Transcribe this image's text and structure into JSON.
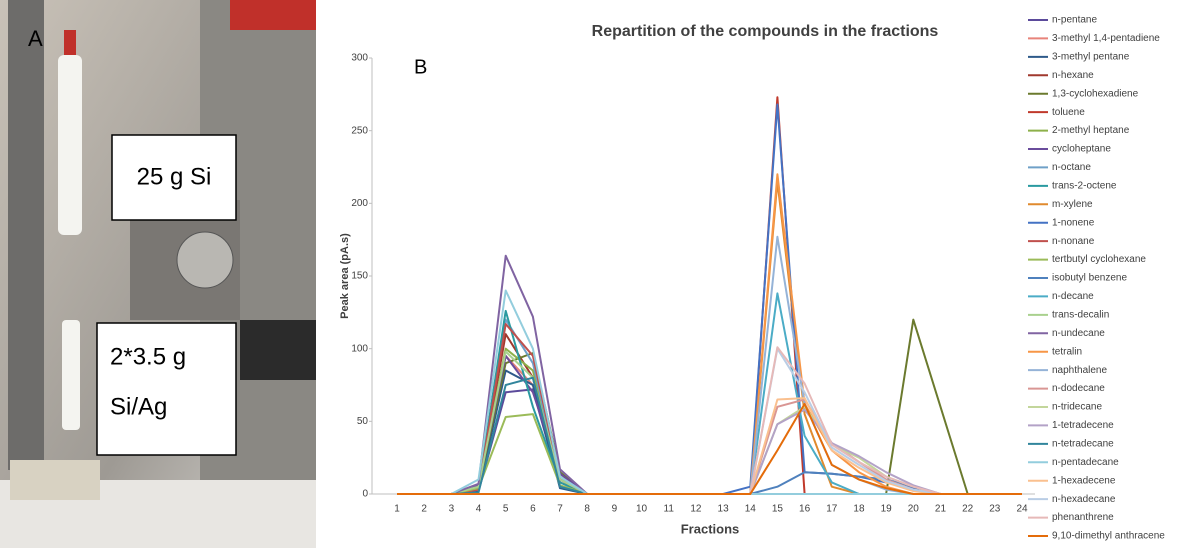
{
  "photo": {
    "panel": "A",
    "box1": "25 g Si",
    "box2": [
      "2*3.5 g",
      "Si/Ag"
    ]
  },
  "chart_data": {
    "type": "line",
    "title": "Repartition of the compounds in the fractions",
    "annotation": "B",
    "x_label": "Fractions",
    "y_label": "Peak area (pA.s)",
    "categories": [
      "1",
      "2",
      "3",
      "4",
      "5",
      "6",
      "7",
      "8",
      "9",
      "10",
      "11",
      "12",
      "13",
      "14",
      "15",
      "16",
      "17",
      "18",
      "19",
      "20",
      "21",
      "22",
      "23",
      "24"
    ],
    "ylim": [
      0,
      300
    ],
    "yticks": [
      0,
      50,
      100,
      150,
      200,
      250,
      300
    ],
    "grid": false,
    "legend": "right",
    "series": [
      {
        "name": "n-pentane",
        "color": "#5b4a9b",
        "values": [
          0,
          0,
          0,
          2,
          70,
          72,
          5,
          0,
          0,
          0,
          0,
          0,
          0,
          0,
          0,
          0,
          0,
          0,
          0,
          0,
          0,
          0,
          0,
          0
        ]
      },
      {
        "name": "3-methyl 1,4-pentadiene",
        "color": "#e8837a",
        "values": [
          0,
          0,
          0,
          3,
          95,
          75,
          8,
          0,
          0,
          0,
          0,
          0,
          0,
          0,
          0,
          0,
          0,
          0,
          0,
          0,
          0,
          0,
          0,
          0
        ]
      },
      {
        "name": "3-methyl pentane",
        "color": "#2e5a8a",
        "values": [
          0,
          0,
          0,
          2,
          85,
          75,
          4,
          0,
          0,
          0,
          0,
          0,
          0,
          0,
          0,
          0,
          0,
          0,
          0,
          0,
          0,
          0,
          0,
          0
        ]
      },
      {
        "name": "n-hexane",
        "color": "#a0392e",
        "values": [
          0,
          0,
          0,
          4,
          110,
          80,
          10,
          0,
          0,
          0,
          0,
          0,
          0,
          0,
          0,
          0,
          0,
          0,
          0,
          0,
          0,
          0,
          0,
          0
        ]
      },
      {
        "name": "1,3-cyclohexadiene",
        "color": "#6b7a2e",
        "values": [
          0,
          0,
          0,
          5,
          90,
          97,
          15,
          0,
          0,
          0,
          0,
          0,
          0,
          0,
          0,
          0,
          0,
          0,
          0,
          120,
          60,
          0,
          0,
          0
        ]
      },
      {
        "name": "toluene",
        "color": "#c0392b",
        "values": [
          0,
          0,
          0,
          0,
          0,
          0,
          0,
          0,
          0,
          0,
          0,
          0,
          0,
          0,
          273,
          0,
          0,
          0,
          0,
          0,
          0,
          0,
          0,
          0
        ]
      },
      {
        "name": "2-methyl heptane",
        "color": "#8db04a",
        "values": [
          0,
          0,
          0,
          5,
          100,
          85,
          12,
          0,
          0,
          0,
          0,
          0,
          0,
          0,
          0,
          0,
          0,
          0,
          0,
          0,
          0,
          0,
          0,
          0
        ]
      },
      {
        "name": "cycloheptane",
        "color": "#6a4c9c",
        "values": [
          0,
          0,
          0,
          6,
          95,
          70,
          14,
          0,
          0,
          0,
          0,
          0,
          0,
          0,
          0,
          0,
          0,
          0,
          0,
          0,
          0,
          0,
          0,
          0
        ]
      },
      {
        "name": "n-octane",
        "color": "#6fa0c8",
        "values": [
          0,
          0,
          0,
          3,
          120,
          90,
          10,
          0,
          0,
          0,
          0,
          0,
          0,
          0,
          0,
          0,
          0,
          0,
          0,
          0,
          0,
          0,
          0,
          0
        ]
      },
      {
        "name": "trans-2-octene",
        "color": "#2a9aa0",
        "values": [
          0,
          0,
          0,
          4,
          126,
          60,
          8,
          0,
          0,
          0,
          0,
          0,
          0,
          0,
          0,
          0,
          0,
          0,
          0,
          0,
          0,
          0,
          0,
          0
        ]
      },
      {
        "name": "m-xylene",
        "color": "#e08a2e",
        "values": [
          0,
          0,
          0,
          0,
          0,
          0,
          0,
          0,
          0,
          0,
          0,
          0,
          0,
          0,
          215,
          55,
          5,
          0,
          0,
          0,
          0,
          0,
          0,
          0
        ]
      },
      {
        "name": "1-nonene",
        "color": "#4472c4",
        "values": [
          0,
          0,
          0,
          0,
          0,
          0,
          0,
          0,
          0,
          0,
          0,
          0,
          0,
          5,
          268,
          15,
          14,
          12,
          8,
          4,
          0,
          0,
          0,
          0
        ]
      },
      {
        "name": "n-nonane",
        "color": "#c0504d",
        "values": [
          0,
          0,
          0,
          3,
          117,
          95,
          10,
          0,
          0,
          0,
          0,
          0,
          0,
          0,
          0,
          0,
          0,
          0,
          0,
          0,
          0,
          0,
          0,
          0
        ]
      },
      {
        "name": "tertbutyl cyclohexane",
        "color": "#9bbb59",
        "values": [
          0,
          0,
          0,
          4,
          53,
          55,
          6,
          0,
          0,
          0,
          0,
          0,
          0,
          0,
          0,
          0,
          0,
          0,
          0,
          0,
          0,
          0,
          0,
          0
        ]
      },
      {
        "name": "isobutyl benzene",
        "color": "#4f81bd",
        "values": [
          0,
          0,
          0,
          0,
          0,
          0,
          0,
          0,
          0,
          0,
          0,
          0,
          0,
          0,
          5,
          15,
          14,
          12,
          10,
          5,
          0,
          0,
          0,
          0
        ]
      },
      {
        "name": "n-decane",
        "color": "#4bacc6",
        "values": [
          0,
          0,
          0,
          0,
          0,
          0,
          0,
          0,
          0,
          0,
          0,
          0,
          0,
          0,
          138,
          40,
          8,
          0,
          0,
          0,
          0,
          0,
          0,
          0
        ]
      },
      {
        "name": "trans-decalin",
        "color": "#a9d18e",
        "values": [
          0,
          0,
          0,
          5,
          98,
          80,
          10,
          0,
          0,
          0,
          0,
          0,
          0,
          0,
          0,
          0,
          0,
          0,
          0,
          0,
          0,
          0,
          0,
          0
        ]
      },
      {
        "name": "n-undecane",
        "color": "#8064a2",
        "values": [
          0,
          0,
          0,
          7,
          164,
          122,
          17,
          0,
          0,
          0,
          0,
          0,
          0,
          0,
          0,
          0,
          0,
          0,
          0,
          0,
          0,
          0,
          0,
          0
        ]
      },
      {
        "name": "tetralin",
        "color": "#f79646",
        "values": [
          0,
          0,
          0,
          0,
          0,
          0,
          0,
          0,
          0,
          0,
          0,
          0,
          0,
          0,
          220,
          62,
          30,
          15,
          5,
          0,
          0,
          0,
          0,
          0
        ]
      },
      {
        "name": "naphthalene",
        "color": "#95b3d7",
        "values": [
          0,
          0,
          0,
          0,
          0,
          0,
          0,
          0,
          0,
          0,
          0,
          0,
          0,
          0,
          177,
          62,
          20,
          10,
          3,
          0,
          0,
          0,
          0,
          0
        ]
      },
      {
        "name": "n-dodecane",
        "color": "#d99694",
        "values": [
          0,
          0,
          0,
          0,
          0,
          0,
          0,
          0,
          0,
          0,
          0,
          0,
          0,
          0,
          60,
          65,
          35,
          22,
          10,
          3,
          0,
          0,
          0,
          0
        ]
      },
      {
        "name": "n-tridecane",
        "color": "#c3d69b",
        "values": [
          0,
          0,
          0,
          0,
          0,
          0,
          0,
          0,
          0,
          0,
          0,
          0,
          0,
          0,
          48,
          60,
          34,
          25,
          12,
          5,
          0,
          0,
          0,
          0
        ]
      },
      {
        "name": "1-tetradecene",
        "color": "#b3a2c7",
        "values": [
          0,
          0,
          0,
          0,
          0,
          0,
          0,
          0,
          0,
          0,
          0,
          0,
          0,
          0,
          48,
          58,
          35,
          26,
          15,
          6,
          0,
          0,
          0,
          0
        ]
      },
      {
        "name": "n-tetradecane",
        "color": "#31859c",
        "values": [
          0,
          0,
          0,
          1,
          75,
          80,
          5,
          0,
          0,
          0,
          0,
          0,
          0,
          0,
          0,
          0,
          0,
          0,
          0,
          0,
          0,
          0,
          0,
          0
        ]
      },
      {
        "name": "n-pentadecane",
        "color": "#93cddd",
        "values": [
          0,
          0,
          0,
          10,
          140,
          100,
          12,
          0,
          0,
          0,
          0,
          0,
          0,
          0,
          0,
          0,
          0,
          0,
          0,
          0,
          0,
          0,
          0,
          0
        ]
      },
      {
        "name": "1-hexadecene",
        "color": "#fac08f",
        "values": [
          0,
          0,
          0,
          0,
          0,
          0,
          0,
          0,
          0,
          0,
          0,
          0,
          0,
          0,
          65,
          66,
          30,
          18,
          8,
          2,
          0,
          0,
          0,
          0
        ]
      },
      {
        "name": "n-hexadecane",
        "color": "#b9cde5",
        "values": [
          0,
          0,
          0,
          0,
          0,
          0,
          0,
          0,
          0,
          0,
          0,
          0,
          0,
          0,
          100,
          70,
          32,
          20,
          9,
          3,
          0,
          0,
          0,
          0
        ]
      },
      {
        "name": "phenanthrene",
        "color": "#e6b9b8",
        "values": [
          0,
          0,
          0,
          0,
          0,
          0,
          0,
          0,
          0,
          0,
          0,
          0,
          0,
          0,
          101,
          76,
          34,
          22,
          12,
          5,
          0,
          0,
          0,
          0
        ]
      },
      {
        "name": "9,10-dimethyl anthracene",
        "color": "#e46c0a",
        "values": [
          0,
          0,
          0,
          0,
          0,
          0,
          0,
          0,
          0,
          0,
          0,
          0,
          0,
          0,
          30,
          62,
          20,
          10,
          4,
          0,
          0,
          0,
          0,
          0
        ]
      }
    ]
  }
}
